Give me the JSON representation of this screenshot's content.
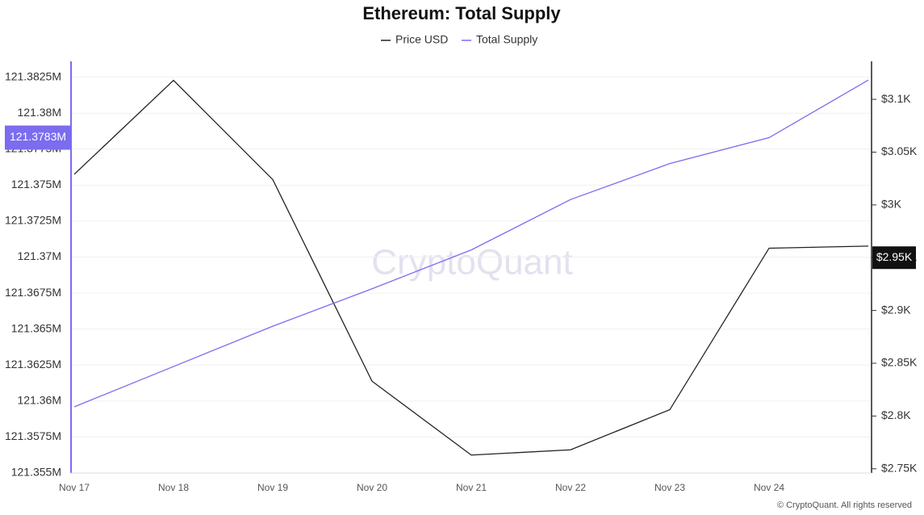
{
  "chart_data": {
    "type": "line",
    "title": "Ethereum: Total Supply",
    "categories": [
      "Nov 17",
      "Nov 18",
      "Nov 19",
      "Nov 20",
      "Nov 21",
      "Nov 22",
      "Nov 23",
      "Nov 24",
      null
    ],
    "series": [
      {
        "name": "Price USD",
        "color": "#222222",
        "axis": "y2",
        "values": [
          3029,
          3118,
          3024,
          2833,
          2763,
          2768,
          2806,
          2959,
          2961
        ],
        "marker": {
          "value": 2950,
          "label": "$2.95K"
        }
      },
      {
        "name": "Total Supply",
        "color": "#7b6cf0",
        "axis": "y",
        "values": [
          121359600,
          121362400,
          121365200,
          121367800,
          121370500,
          121374000,
          121376500,
          121378300,
          121382300
        ],
        "marker": {
          "value": 121378300,
          "label": "121.3783M"
        }
      }
    ],
    "ylim": [
      121355000,
      121383600
    ],
    "yticks": [
      {
        "value": 121355000,
        "label": "121.355M"
      },
      {
        "value": 121357500,
        "label": "121.3575M"
      },
      {
        "value": 121360000,
        "label": "121.36M"
      },
      {
        "value": 121362500,
        "label": "121.3625M"
      },
      {
        "value": 121365000,
        "label": "121.365M"
      },
      {
        "value": 121367500,
        "label": "121.3675M"
      },
      {
        "value": 121370000,
        "label": "121.37M"
      },
      {
        "value": 121372500,
        "label": "121.3725M"
      },
      {
        "value": 121375000,
        "label": "121.375M"
      },
      {
        "value": 121377500,
        "label": "121.3775M"
      },
      {
        "value": 121380000,
        "label": "121.38M"
      },
      {
        "value": 121382500,
        "label": "121.3825M"
      }
    ],
    "y2lim": [
      2746,
      3136
    ],
    "y2ticks": [
      {
        "value": 2750,
        "label": "$2.75K"
      },
      {
        "value": 2800,
        "label": "$2.8K"
      },
      {
        "value": 2850,
        "label": "$2.85K"
      },
      {
        "value": 2900,
        "label": "$2.9K"
      },
      {
        "value": 2950,
        "label": "$2.95K"
      },
      {
        "value": 3000,
        "label": "$3K"
      },
      {
        "value": 3050,
        "label": "$3.05K"
      },
      {
        "value": 3100,
        "label": "$3.1K"
      }
    ],
    "grid": true,
    "watermark": "CryptoQuant",
    "footer": "© CryptoQuant. All rights reserved"
  }
}
